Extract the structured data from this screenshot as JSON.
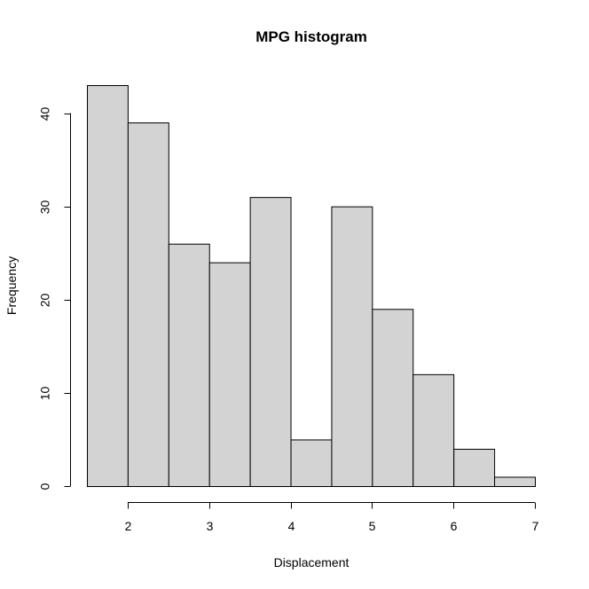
{
  "chart_data": {
    "type": "bar",
    "subtype": "histogram",
    "title": "MPG histogram",
    "xlabel": "Displacement",
    "ylabel": "Frequency",
    "bins": [
      {
        "x0": 1.5,
        "x1": 2.0,
        "count": 43
      },
      {
        "x0": 2.0,
        "x1": 2.5,
        "count": 39
      },
      {
        "x0": 2.5,
        "x1": 3.0,
        "count": 26
      },
      {
        "x0": 3.0,
        "x1": 3.5,
        "count": 24
      },
      {
        "x0": 3.5,
        "x1": 4.0,
        "count": 31
      },
      {
        "x0": 4.0,
        "x1": 4.5,
        "count": 5
      },
      {
        "x0": 4.5,
        "x1": 5.0,
        "count": 30
      },
      {
        "x0": 5.0,
        "x1": 5.5,
        "count": 19
      },
      {
        "x0": 5.5,
        "x1": 6.0,
        "count": 12
      },
      {
        "x0": 6.0,
        "x1": 6.5,
        "count": 4
      },
      {
        "x0": 6.5,
        "x1": 7.0,
        "count": 1
      }
    ],
    "xlim": [
      1.5,
      7
    ],
    "ylim": [
      0,
      43
    ],
    "xticks": [
      2,
      3,
      4,
      5,
      6,
      7
    ],
    "yticks": [
      0,
      10,
      20,
      30,
      40
    ],
    "bar_color": "#d3d3d3",
    "grid": false,
    "legend": "none"
  }
}
